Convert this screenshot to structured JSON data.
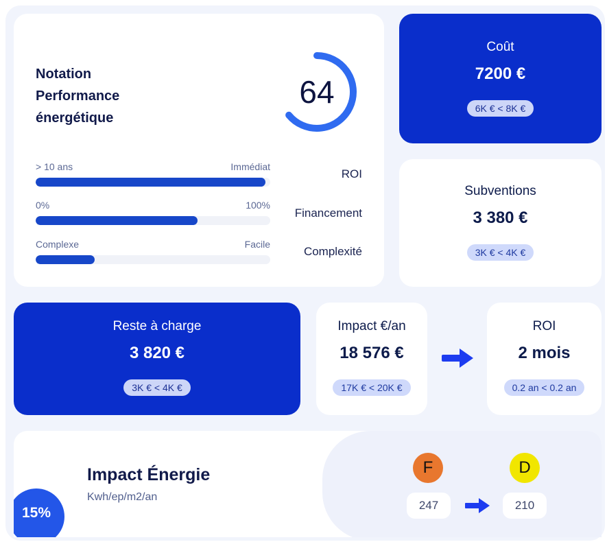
{
  "notation": {
    "title_lines": [
      "Notation",
      "Performance",
      "énergétique"
    ],
    "score": "64",
    "score_value": 64,
    "criteria": [
      {
        "name": "ROI",
        "left_label": "> 10 ans",
        "right_label": "Immédiat",
        "fill_fraction": 0.98
      },
      {
        "name": "Financement",
        "left_label": "0%",
        "right_label": "100%",
        "fill_fraction": 0.69
      },
      {
        "name": "Complexité",
        "left_label": "Complexe",
        "right_label": "Facile",
        "fill_fraction": 0.25
      }
    ]
  },
  "cout": {
    "label": "Coût",
    "value": "7200 €",
    "range": "6K € < 8K €"
  },
  "subventions": {
    "label": "Subventions",
    "value": "3 380 €",
    "range": "3K € < 4K €"
  },
  "reste": {
    "label": "Reste à charge",
    "value": "3 820 €",
    "range": "3K € < 4K €"
  },
  "impact": {
    "label": "Impact €/an",
    "value": "18 576 €",
    "range": "17K € < 20K €"
  },
  "roi": {
    "label": "ROI",
    "value": "2 mois",
    "range": "0.2 an < 0.2 an"
  },
  "energie": {
    "title": "Impact Énergie",
    "unit": "Kwh/ep/m2/an",
    "percent": "15%",
    "from": {
      "grade": "F",
      "value": "247",
      "color": "#e8772e"
    },
    "to": {
      "grade": "D",
      "value": "210",
      "color": "#f1e600"
    }
  },
  "colors": {
    "brand_blue": "#0a2ecb",
    "bar_blue": "#1747c9",
    "gauge_blue": "#2f6bf0"
  }
}
